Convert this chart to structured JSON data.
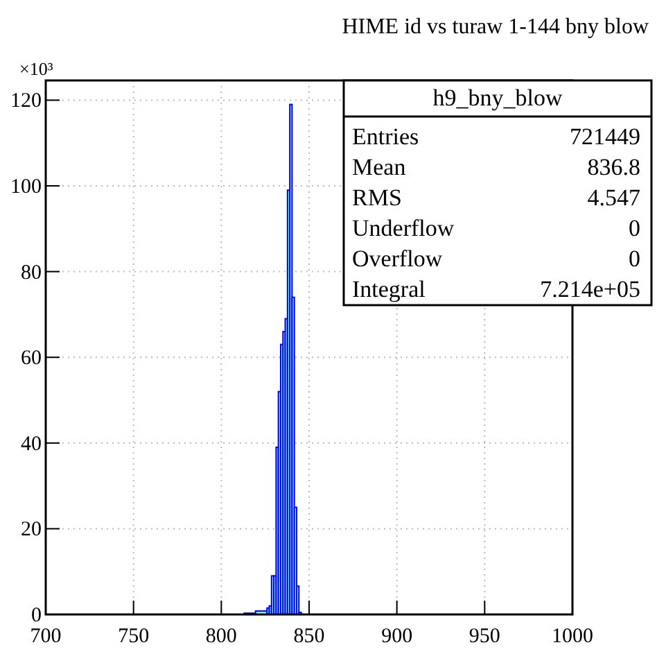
{
  "chart_data": {
    "type": "histogram",
    "title": "HIME id vs turaw 1-144 bny blow",
    "ylabel": "×10³",
    "bins": [
      813,
      819.5,
      826,
      827.3,
      828.6,
      829.9,
      831.2,
      832.5,
      833.8,
      835.1,
      836.4,
      837.7,
      839.0,
      840.3,
      841.6,
      842.9,
      844.2,
      845.5
    ],
    "values": [
      0.3,
      0.8,
      1.5,
      2,
      9,
      9,
      39,
      52,
      63,
      66,
      69,
      99,
      119,
      74,
      25,
      6.6,
      0.5
    ],
    "color": "#7ff8ff",
    "xlim": [
      700,
      1000
    ],
    "xticks": [
      700,
      750,
      800,
      850,
      900,
      950,
      1000
    ],
    "ylim": [
      0,
      124.6
    ],
    "yticks": [
      0,
      20,
      40,
      60,
      80,
      100,
      120
    ],
    "grid": true,
    "annotations": [
      "h9_bny_blow",
      "Entries",
      "721449",
      "Mean",
      "836.8",
      "RMS",
      "4.547",
      "Underflow",
      "0",
      "Overflow",
      "0",
      "Integral",
      "7.214e+05"
    ]
  }
}
